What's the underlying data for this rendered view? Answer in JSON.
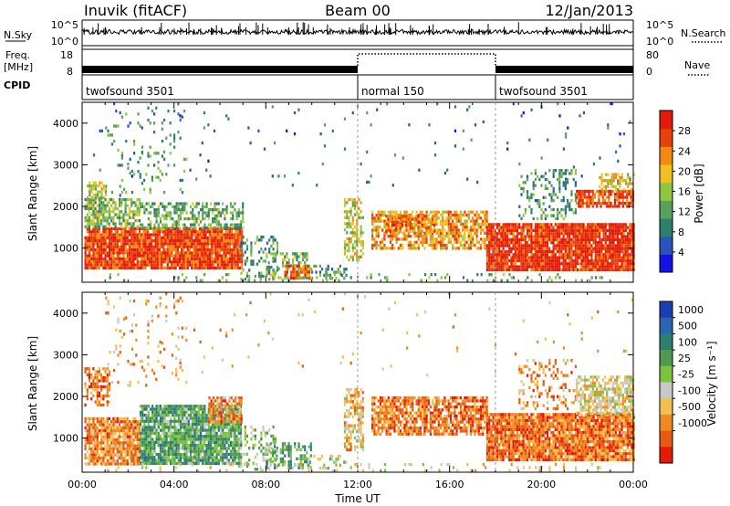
{
  "header": {
    "station": "Inuvik (fitACF)",
    "beam": "Beam 00",
    "date": "12/Jan/2013"
  },
  "chart_data": [
    {
      "type": "line",
      "name": "noise-panel",
      "left_labels": [
        "N.Sky",
        "Freq.",
        "[MHz]",
        "CPID"
      ],
      "right_labels": [
        "N.Search",
        "Nave"
      ],
      "left_ticks": [
        "10^5",
        "10^0",
        "18",
        "8"
      ],
      "right_ticks": [
        "10^5",
        "10^0",
        "80",
        "0"
      ],
      "nsky_base": 0.35,
      "freq_mhz": 10.5,
      "freq_gap_hours": [
        12.0,
        18.0
      ],
      "cpid_segments": [
        {
          "label": "twofsound 3501",
          "start_hour": 0.0
        },
        {
          "label": "normal 150",
          "start_hour": 12.0
        },
        {
          "label": "twofsound 3501",
          "start_hour": 18.0
        }
      ]
    },
    {
      "type": "heatmap",
      "name": "power",
      "ylabel": "Slant Range [km]",
      "xlim": [
        0,
        24
      ],
      "ylim": [
        180,
        4500
      ],
      "yticks": [
        "1000",
        "2000",
        "3000",
        "4000"
      ],
      "colorbar": {
        "label": "Power [dB]",
        "ticks": [
          "4",
          "8",
          "12",
          "16",
          "20",
          "24",
          "28"
        ],
        "colors": [
          "#1212e6",
          "#2a55b8",
          "#2f7f6e",
          "#5aa05a",
          "#8dc63f",
          "#f0c020",
          "#f08a10",
          "#e8400a",
          "#e41a0a"
        ]
      },
      "regions": [
        {
          "t0": 0.1,
          "t1": 7.0,
          "r0": 500,
          "r1": 1500,
          "level": 0.85,
          "density": 0.95
        },
        {
          "t0": 0.1,
          "t1": 2.5,
          "r0": 1500,
          "r1": 2200,
          "level": 0.45,
          "density": 0.7
        },
        {
          "t0": 0.2,
          "t1": 1.0,
          "r0": 2200,
          "r1": 2600,
          "level": 0.5,
          "density": 0.6
        },
        {
          "t0": 2.5,
          "t1": 7.0,
          "r0": 1500,
          "r1": 2100,
          "level": 0.4,
          "density": 0.55
        },
        {
          "t0": 1.0,
          "t1": 4.5,
          "r0": 2300,
          "r1": 4400,
          "level": 0.35,
          "density": 0.08
        },
        {
          "t0": 6.8,
          "t1": 8.5,
          "r0": 250,
          "r1": 1300,
          "level": 0.35,
          "density": 0.3
        },
        {
          "t0": 8.0,
          "t1": 9.8,
          "r0": 280,
          "r1": 900,
          "level": 0.45,
          "density": 0.5
        },
        {
          "t0": 8.8,
          "t1": 10.0,
          "r0": 300,
          "r1": 600,
          "level": 0.8,
          "density": 0.8
        },
        {
          "t0": 9.8,
          "t1": 11.5,
          "r0": 250,
          "r1": 600,
          "level": 0.35,
          "density": 0.35
        },
        {
          "t0": 11.4,
          "t1": 12.2,
          "r0": 700,
          "r1": 2200,
          "level": 0.55,
          "density": 0.55
        },
        {
          "t0": 12.6,
          "t1": 17.6,
          "r0": 1000,
          "r1": 1900,
          "level": 0.7,
          "density": 0.7
        },
        {
          "t0": 13.2,
          "t1": 15.3,
          "r0": 1400,
          "r1": 1800,
          "level": 0.75,
          "density": 0.7
        },
        {
          "t0": 17.6,
          "t1": 24.0,
          "r0": 450,
          "r1": 1600,
          "level": 0.9,
          "density": 0.95
        },
        {
          "t0": 19.0,
          "t1": 21.5,
          "r0": 1700,
          "r1": 2900,
          "level": 0.35,
          "density": 0.3
        },
        {
          "t0": 21.5,
          "t1": 24.0,
          "r0": 2000,
          "r1": 2400,
          "level": 0.85,
          "density": 0.8
        },
        {
          "t0": 22.5,
          "t1": 24.0,
          "r0": 2400,
          "r1": 2800,
          "level": 0.6,
          "density": 0.4
        },
        {
          "t0": 0.3,
          "t1": 24.0,
          "r0": 2500,
          "r1": 4500,
          "level": 0.25,
          "density": 0.015
        },
        {
          "t0": 1.0,
          "t1": 23.0,
          "r0": 200,
          "r1": 400,
          "level": 0.4,
          "density": 0.1
        }
      ]
    },
    {
      "type": "heatmap",
      "name": "velocity",
      "ylabel": "Slant Range [km]",
      "xlabel": "Time UT",
      "xlim": [
        0,
        24
      ],
      "ylim": [
        180,
        4500
      ],
      "yticks": [
        "1000",
        "2000",
        "3000",
        "4000"
      ],
      "xticks": [
        "00:00",
        "04:00",
        "08:00",
        "12:00",
        "16:00",
        "20:00",
        "00:00"
      ],
      "colorbar": {
        "label": "Velocity [m s⁻¹]",
        "ticks": [
          "1000",
          "500",
          "100",
          "25",
          "-25",
          "-100",
          "-500",
          "-1000"
        ],
        "colors": [
          "#1a3fb5",
          "#2a66b0",
          "#2f7f6e",
          "#4f9a4f",
          "#7cc440",
          "#c8c8c8",
          "#f0c050",
          "#f08a20",
          "#e85a10",
          "#e41a0a"
        ]
      },
      "regions": [
        {
          "t0": 0.1,
          "t1": 2.5,
          "r0": 400,
          "r1": 1500,
          "level": 0.75,
          "density": 0.9
        },
        {
          "t0": 2.5,
          "t1": 6.9,
          "r0": 400,
          "r1": 1800,
          "level": 0.35,
          "density": 0.9
        },
        {
          "t0": 5.5,
          "t1": 6.9,
          "r0": 1400,
          "r1": 2000,
          "level": 0.75,
          "density": 0.8
        },
        {
          "t0": 0.1,
          "t1": 1.2,
          "r0": 1800,
          "r1": 2700,
          "level": 0.8,
          "density": 0.6
        },
        {
          "t0": 1.0,
          "t1": 4.5,
          "r0": 2300,
          "r1": 4400,
          "level": 0.7,
          "density": 0.08
        },
        {
          "t0": 6.8,
          "t1": 8.5,
          "r0": 250,
          "r1": 1300,
          "level": 0.45,
          "density": 0.3
        },
        {
          "t0": 8.0,
          "t1": 10.0,
          "r0": 280,
          "r1": 900,
          "level": 0.35,
          "density": 0.5
        },
        {
          "t0": 9.8,
          "t1": 11.5,
          "r0": 250,
          "r1": 600,
          "level": 0.55,
          "density": 0.35
        },
        {
          "t0": 11.4,
          "t1": 12.2,
          "r0": 700,
          "r1": 2200,
          "level": 0.65,
          "density": 0.55
        },
        {
          "t0": 12.6,
          "t1": 17.6,
          "r0": 1100,
          "r1": 2000,
          "level": 0.8,
          "density": 0.75
        },
        {
          "t0": 17.6,
          "t1": 24.0,
          "r0": 450,
          "r1": 1600,
          "level": 0.8,
          "density": 0.95
        },
        {
          "t0": 19.0,
          "t1": 21.5,
          "r0": 1700,
          "r1": 2900,
          "level": 0.75,
          "density": 0.3
        },
        {
          "t0": 21.5,
          "t1": 24.0,
          "r0": 1600,
          "r1": 2500,
          "level": 0.6,
          "density": 0.7
        },
        {
          "t0": 0.3,
          "t1": 24.0,
          "r0": 2500,
          "r1": 4500,
          "level": 0.7,
          "density": 0.015
        },
        {
          "t0": 1.0,
          "t1": 23.0,
          "r0": 200,
          "r1": 400,
          "level": 0.6,
          "density": 0.1
        }
      ]
    }
  ]
}
